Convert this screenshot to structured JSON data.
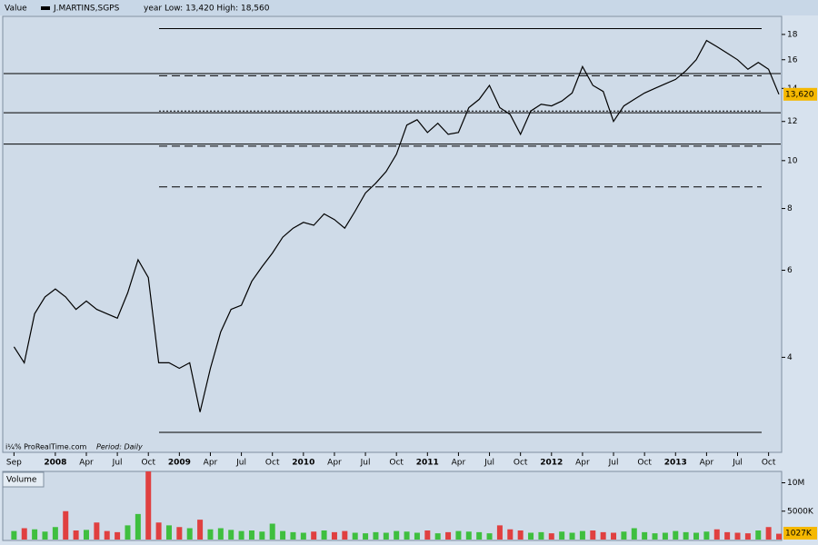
{
  "chart_data": [
    {
      "type": "line",
      "title": "Value",
      "subtitle": "year Low: 13,420 High: 18,560",
      "notes": [
        "i¼% ProRealTime.com",
        "Period: Daily"
      ],
      "log_scale": true,
      "grid": false,
      "x": [
        "2007-09",
        "2007-10",
        "2007-11",
        "2007-12",
        "2008-01",
        "2008-02",
        "2008-03",
        "2008-04",
        "2008-05",
        "2008-06",
        "2008-07",
        "2008-08",
        "2008-09",
        "2008-10",
        "2008-11",
        "2008-12",
        "2009-01",
        "2009-02",
        "2009-03",
        "2009-04",
        "2009-05",
        "2009-06",
        "2009-07",
        "2009-08",
        "2009-09",
        "2009-10",
        "2009-11",
        "2009-12",
        "2010-01",
        "2010-02",
        "2010-03",
        "2010-04",
        "2010-05",
        "2010-06",
        "2010-07",
        "2010-08",
        "2010-09",
        "2010-10",
        "2010-11",
        "2010-12",
        "2011-01",
        "2011-02",
        "2011-03",
        "2011-04",
        "2011-05",
        "2011-06",
        "2011-07",
        "2011-08",
        "2011-09",
        "2011-10",
        "2011-11",
        "2011-12",
        "2012-01",
        "2012-02",
        "2012-03",
        "2012-04",
        "2012-05",
        "2012-06",
        "2012-07",
        "2012-08",
        "2012-09",
        "2012-10",
        "2012-11",
        "2012-12",
        "2013-01",
        "2013-02",
        "2013-03",
        "2013-04",
        "2013-05",
        "2013-06",
        "2013-07",
        "2013-08",
        "2013-09",
        "2013-10",
        "2013-11"
      ],
      "series": [
        {
          "name": "J.MARTINS,SGPS",
          "color": "#000000",
          "values": [
            4.2,
            3.9,
            4.9,
            5.3,
            5.5,
            5.3,
            5.0,
            5.2,
            5.0,
            4.9,
            4.8,
            5.4,
            6.3,
            5.8,
            3.9,
            3.9,
            3.8,
            3.9,
            3.1,
            3.8,
            4.5,
            5.0,
            5.1,
            5.7,
            6.1,
            6.5,
            7.0,
            7.3,
            7.5,
            7.4,
            7.8,
            7.6,
            7.3,
            7.9,
            8.6,
            9.0,
            9.5,
            10.3,
            11.8,
            12.1,
            11.4,
            11.9,
            11.3,
            11.4,
            12.8,
            13.3,
            14.2,
            12.8,
            12.4,
            11.3,
            12.6,
            13.0,
            12.9,
            13.2,
            13.7,
            15.5,
            14.2,
            13.8,
            12.0,
            12.9,
            13.3,
            13.7,
            14.0,
            14.3,
            14.6,
            15.2,
            16.0,
            17.5,
            17.0,
            16.5,
            16.0,
            15.3,
            15.8,
            15.3,
            13.62
          ]
        }
      ],
      "last_value": {
        "value": 13.62,
        "label": "13,620",
        "color": "#f5b800"
      },
      "levels": [
        {
          "value": 18.5,
          "style": "solid",
          "span": "partial"
        },
        {
          "value": 15.0,
          "style": "solid",
          "span": "full"
        },
        {
          "value": 14.85,
          "style": "dashed",
          "span": "partial"
        },
        {
          "value": 12.6,
          "style": "dotted",
          "span": "partial"
        },
        {
          "value": 12.5,
          "style": "solid",
          "span": "full"
        },
        {
          "value": 10.8,
          "style": "solid",
          "span": "full"
        },
        {
          "value": 10.7,
          "style": "dashed",
          "span": "partial"
        },
        {
          "value": 8.85,
          "style": "dashed",
          "span": "partial"
        },
        {
          "value": 2.82,
          "style": "solid",
          "span": "partial"
        }
      ],
      "xlim": [
        "2007-08",
        "2013-11"
      ],
      "xticks": [
        {
          "value": "2007-09",
          "label": "Sep"
        },
        {
          "value": "2008-01",
          "label": "2008"
        },
        {
          "value": "2008-04",
          "label": "Apr"
        },
        {
          "value": "2008-07",
          "label": "Jul"
        },
        {
          "value": "2008-10",
          "label": "Oct"
        },
        {
          "value": "2009-01",
          "label": "2009"
        },
        {
          "value": "2009-04",
          "label": "Apr"
        },
        {
          "value": "2009-07",
          "label": "Jul"
        },
        {
          "value": "2009-10",
          "label": "Oct"
        },
        {
          "value": "2010-01",
          "label": "2010"
        },
        {
          "value": "2010-04",
          "label": "Apr"
        },
        {
          "value": "2010-07",
          "label": "Jul"
        },
        {
          "value": "2010-10",
          "label": "Oct"
        },
        {
          "value": "2011-01",
          "label": "2011"
        },
        {
          "value": "2011-04",
          "label": "Apr"
        },
        {
          "value": "2011-07",
          "label": "Jul"
        },
        {
          "value": "2011-10",
          "label": "Oct"
        },
        {
          "value": "2012-01",
          "label": "2012"
        },
        {
          "value": "2012-04",
          "label": "Apr"
        },
        {
          "value": "2012-07",
          "label": "Jul"
        },
        {
          "value": "2012-10",
          "label": "Oct"
        },
        {
          "value": "2013-01",
          "label": "2013"
        },
        {
          "value": "2013-04",
          "label": "Apr"
        },
        {
          "value": "2013-07",
          "label": "Jul"
        },
        {
          "value": "2013-10",
          "label": "Oct"
        }
      ],
      "ylim": [
        2.58,
        19.5
      ],
      "yticks": [
        4,
        6,
        8,
        10,
        12,
        14,
        16,
        18
      ]
    },
    {
      "type": "bar",
      "title": "Volume",
      "up_color": "#3fbf3f",
      "down_color": "#e04040",
      "values": [
        1500000,
        2000000,
        1800000,
        1400000,
        2200000,
        5000000,
        1600000,
        1700000,
        3000000,
        1500000,
        1300000,
        2500000,
        4500000,
        12000000,
        3000000,
        2500000,
        2200000,
        2000000,
        3500000,
        1800000,
        2000000,
        1700000,
        1500000,
        1600000,
        1400000,
        2800000,
        1500000,
        1300000,
        1200000,
        1400000,
        1600000,
        1300000,
        1500000,
        1200000,
        1100000,
        1300000,
        1200000,
        1500000,
        1400000,
        1200000,
        1600000,
        1100000,
        1300000,
        1500000,
        1400000,
        1300000,
        1100000,
        2500000,
        1800000,
        1600000,
        1200000,
        1300000,
        1100000,
        1400000,
        1200000,
        1500000,
        1600000,
        1300000,
        1200000,
        1400000,
        2000000,
        1300000,
        1100000,
        1200000,
        1500000,
        1300000,
        1200000,
        1400000,
        1800000,
        1300000,
        1200000,
        1100000,
        1600000,
        2200000,
        1027000
      ],
      "last_value": {
        "value": 1027000,
        "label": "1027K",
        "color": "#f5b800"
      },
      "ylim": [
        0,
        12000000
      ],
      "yticks": [
        {
          "value": 10000000,
          "label": "10M"
        },
        {
          "value": 5000000,
          "label": "5000K"
        }
      ]
    }
  ]
}
